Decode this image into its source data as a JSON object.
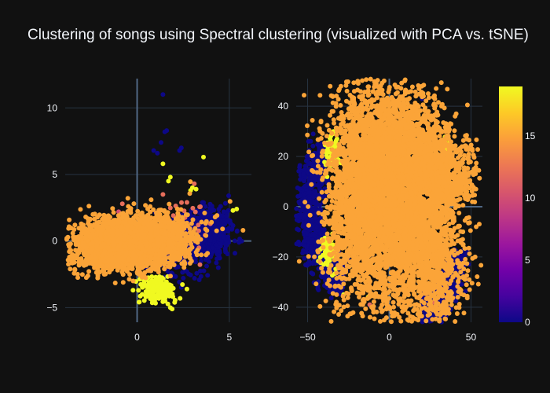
{
  "chart_data": {
    "type": "scatter",
    "title": "Clustering of songs using Spectral clustering (visualized with PCA vs. tSNE)",
    "background": "#111111",
    "colorscale": [
      "#0d0887",
      "#46039f",
      "#7201a8",
      "#9c179e",
      "#bd3786",
      "#d8576b",
      "#ed7953",
      "#fb9f3a",
      "#fdca26",
      "#f0f921"
    ],
    "colorbar": {
      "min": 0,
      "max": 19,
      "ticks": [
        0,
        5,
        10,
        15
      ]
    },
    "panels": [
      {
        "name": "PCA",
        "xlim": [
          -3.9,
          6.2
        ],
        "ylim": [
          -6.1,
          12.2
        ],
        "xticks": [
          0,
          5
        ],
        "yticks": [
          -5,
          0,
          5,
          10
        ],
        "xzero": true,
        "yzero": true,
        "clusters": [
          {
            "label": 15,
            "shape": "ellipse",
            "n": 2600,
            "cx": -0.7,
            "cy": -0.3,
            "sx": 1.3,
            "sy": 0.9,
            "rot": 0.12
          },
          {
            "label": 15,
            "shape": "ellipse",
            "n": 500,
            "cx": 1.2,
            "cy": 0.3,
            "sx": 1.1,
            "sy": 0.9,
            "rot": 0
          },
          {
            "label": 0,
            "shape": "ellipse",
            "n": 650,
            "cx": 3.8,
            "cy": 0.6,
            "sx": 0.7,
            "sy": 0.9,
            "rot": 0
          },
          {
            "label": 0,
            "shape": "ellipse",
            "n": 180,
            "cx": 2.2,
            "cy": -0.8,
            "sx": 0.8,
            "sy": 1.0,
            "rot": 0
          },
          {
            "label": 19,
            "shape": "ellipse",
            "n": 220,
            "cx": 1.1,
            "cy": -3.7,
            "sx": 0.45,
            "sy": 0.45,
            "rot": 0
          },
          {
            "label": 12,
            "shape": "ellipse",
            "n": 25,
            "cx": 2.6,
            "cy": 0.8,
            "sx": 0.7,
            "sy": 1.3,
            "rot": 0
          },
          {
            "label": 15,
            "shape": "ellipse",
            "n": 40,
            "cx": 2.2,
            "cy": 1.5,
            "sx": 1.2,
            "sy": 1.5,
            "rot": 0
          }
        ],
        "points": [
          {
            "x": 1.4,
            "y": 11.0,
            "label": 0
          },
          {
            "x": 1.5,
            "y": 8.2,
            "label": 0
          },
          {
            "x": 1.6,
            "y": 8.3,
            "label": 0
          },
          {
            "x": 0.9,
            "y": 6.8,
            "label": 0
          },
          {
            "x": 1.1,
            "y": 6.6,
            "label": 0
          },
          {
            "x": 2.3,
            "y": 6.8,
            "label": 0
          },
          {
            "x": 2.4,
            "y": 7.0,
            "label": 0
          },
          {
            "x": 1.3,
            "y": 7.4,
            "label": 0
          },
          {
            "x": 3.6,
            "y": 6.3,
            "label": 19
          },
          {
            "x": 1.4,
            "y": 5.8,
            "label": 19
          },
          {
            "x": 1.8,
            "y": 4.8,
            "label": 19
          },
          {
            "x": 1.7,
            "y": 4.5,
            "label": 19
          },
          {
            "x": 3.1,
            "y": 4.3,
            "label": 12
          },
          {
            "x": 3.2,
            "y": 3.9,
            "label": 19
          },
          {
            "x": 3.0,
            "y": 4.0,
            "label": 19
          },
          {
            "x": 2.9,
            "y": 3.8,
            "label": 19
          },
          {
            "x": 1.4,
            "y": 3.5,
            "label": 12
          },
          {
            "x": 5.4,
            "y": 2.4,
            "label": 19
          },
          {
            "x": 5.2,
            "y": 2.3,
            "label": 19
          },
          {
            "x": 4.7,
            "y": 2.2,
            "label": 0
          },
          {
            "x": 1.8,
            "y": -5.0,
            "label": 19
          },
          {
            "x": 1.9,
            "y": -5.1,
            "label": 19
          },
          {
            "x": 2.7,
            "y": -3.6,
            "label": 19
          },
          {
            "x": 4.4,
            "y": -2.0,
            "label": 0
          },
          {
            "x": -0.8,
            "y": 2.8,
            "label": 12
          },
          {
            "x": -1.0,
            "y": 2.2,
            "label": 10
          }
        ]
      },
      {
        "name": "tSNE",
        "xlim": [
          -57,
          57
        ],
        "ylim": [
          -46,
          51
        ],
        "xticks": [
          -50,
          0,
          50
        ],
        "yticks": [
          -40,
          -20,
          0,
          20,
          40
        ],
        "xzero": true,
        "yzero": true,
        "clusters": [
          {
            "label": 15,
            "shape": "ellipse",
            "n": 3200,
            "cx": -12,
            "cy": 4,
            "sx": 13,
            "sy": 22,
            "rot": 0
          },
          {
            "label": 15,
            "shape": "ellipse",
            "n": 1000,
            "cx": 10,
            "cy": 25,
            "sx": 12,
            "sy": 12,
            "rot": 0
          },
          {
            "label": 15,
            "shape": "ellipse",
            "n": 1400,
            "cx": 22,
            "cy": -15,
            "sx": 11,
            "sy": 16,
            "rot": 0.3
          },
          {
            "label": 15,
            "shape": "ellipse",
            "n": 800,
            "cx": 32,
            "cy": 12,
            "sx": 10,
            "sy": 9,
            "rot": 0
          },
          {
            "label": 15,
            "shape": "ellipse",
            "n": 400,
            "cx": 8,
            "cy": -2,
            "sx": 6,
            "sy": 18,
            "rot": 0
          },
          {
            "label": 0,
            "shape": "arc",
            "n": 700,
            "cx": -18,
            "cy": 0,
            "rx": 32,
            "ry": 32,
            "a0": 2.3,
            "a1": 4.4,
            "thick": 4
          },
          {
            "label": 0,
            "shape": "arc",
            "n": 500,
            "cx": 22,
            "cy": -20,
            "rx": 18,
            "ry": 20,
            "a0": 4.6,
            "a1": 6.4,
            "thick": 3.5
          },
          {
            "label": 19,
            "shape": "ellipse",
            "n": 70,
            "cx": -35,
            "cy": 22,
            "sx": 2.5,
            "sy": 3.5,
            "rot": 0
          },
          {
            "label": 19,
            "shape": "ellipse",
            "n": 90,
            "cx": -37,
            "cy": -18,
            "sx": 2.5,
            "sy": 3.5,
            "rot": 0
          },
          {
            "label": 18,
            "shape": "ellipse",
            "n": 30,
            "cx": 34,
            "cy": 22,
            "sx": 1.5,
            "sy": 2,
            "rot": 0
          }
        ],
        "points": [
          {
            "x": 20,
            "y": 43,
            "label": 0
          },
          {
            "x": 1,
            "y": 12,
            "label": 0
          },
          {
            "x": 2,
            "y": 11,
            "label": 12
          },
          {
            "x": 40,
            "y": -17,
            "label": 0
          },
          {
            "x": 27,
            "y": -38,
            "label": 12
          },
          {
            "x": -12,
            "y": -39,
            "label": 12
          },
          {
            "x": 45,
            "y": -10,
            "label": 19
          },
          {
            "x": 0,
            "y": -40,
            "label": 15
          },
          {
            "x": -28,
            "y": -35,
            "label": 19
          },
          {
            "x": -13,
            "y": -36,
            "label": 19
          }
        ]
      }
    ]
  }
}
